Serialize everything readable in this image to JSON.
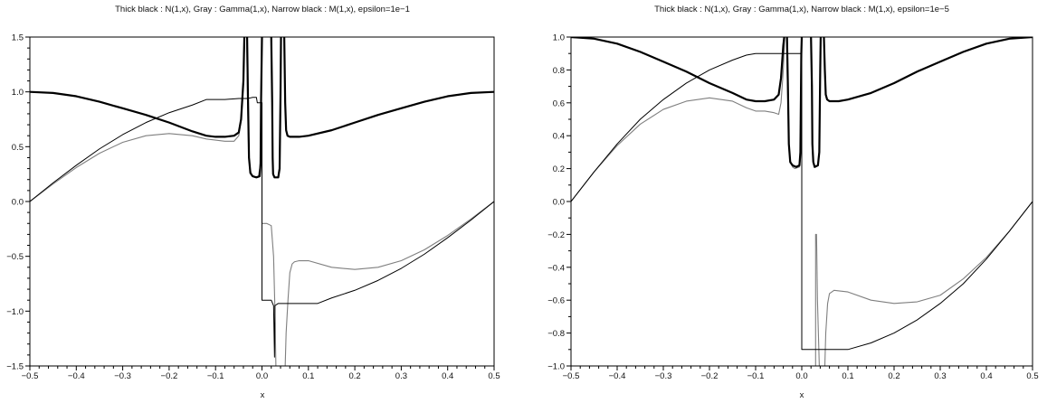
{
  "chart_data": [
    {
      "type": "line",
      "title": "Thick black : N(1,x), Gray : Gamma(1,x), Narrow black : M(1,x), epsilon=1e−1",
      "xlabel": "x",
      "ylabel": "",
      "xlim": [
        -0.5,
        0.5
      ],
      "ylim": [
        -1.5,
        1.5
      ],
      "x_ticks": [
        "−0.5",
        "−0.4",
        "−0.3",
        "−0.2",
        "−0.1",
        "0.0",
        "0.1",
        "0.2",
        "0.3",
        "0.4",
        "0.5"
      ],
      "y_ticks": [
        "−1.5",
        "−1.0",
        "−0.5",
        "0.0",
        "0.5",
        "1.0",
        "1.5"
      ],
      "grid": false,
      "series": [
        {
          "color": "#7f7f7f",
          "width": 1.1,
          "points": [
            [
              -0.5,
              0.0
            ],
            [
              -0.45,
              0.16
            ],
            [
              -0.4,
              0.31
            ],
            [
              -0.35,
              0.44
            ],
            [
              -0.3,
              0.54
            ],
            [
              -0.25,
              0.6
            ],
            [
              -0.2,
              0.62
            ],
            [
              -0.15,
              0.6
            ],
            [
              -0.12,
              0.57
            ],
            [
              -0.1,
              0.56
            ],
            [
              -0.08,
              0.55
            ],
            [
              -0.07,
              0.55
            ],
            [
              -0.06,
              0.55
            ],
            [
              -0.05,
              0.6
            ],
            [
              -0.045,
              0.75
            ],
            [
              -0.04,
              1.1
            ],
            [
              -0.037,
              1.5
            ],
            null,
            [
              -0.033,
              1.5
            ],
            [
              -0.031,
              0.9
            ],
            [
              -0.029,
              0.5
            ],
            [
              -0.026,
              0.3
            ],
            [
              -0.022,
              0.24
            ],
            [
              -0.015,
              0.22
            ],
            [
              -0.008,
              0.23
            ],
            [
              -0.004,
              0.32
            ],
            [
              -0.002,
              0.9
            ],
            [
              0.0,
              0.9
            ],
            [
              0.0,
              -0.2
            ],
            [
              0.01,
              -0.2
            ],
            [
              0.02,
              -0.22
            ],
            [
              0.025,
              -0.5
            ],
            [
              0.028,
              -1.0
            ],
            [
              0.03,
              -1.5
            ],
            null,
            [
              0.05,
              -1.5
            ],
            [
              0.052,
              -1.2
            ],
            [
              0.056,
              -0.9
            ],
            [
              0.06,
              -0.65
            ],
            [
              0.065,
              -0.57
            ],
            [
              0.07,
              -0.55
            ],
            [
              0.08,
              -0.54
            ],
            [
              0.1,
              -0.54
            ],
            [
              0.15,
              -0.6
            ],
            [
              0.2,
              -0.62
            ],
            [
              0.25,
              -0.6
            ],
            [
              0.3,
              -0.54
            ],
            [
              0.35,
              -0.44
            ],
            [
              0.4,
              -0.31
            ],
            [
              0.45,
              -0.16
            ],
            [
              0.5,
              0.0
            ]
          ]
        },
        {
          "color": "#000000",
          "width": 1.0,
          "points": [
            [
              -0.5,
              0.0
            ],
            [
              -0.45,
              0.17
            ],
            [
              -0.4,
              0.33
            ],
            [
              -0.35,
              0.48
            ],
            [
              -0.3,
              0.61
            ],
            [
              -0.25,
              0.72
            ],
            [
              -0.2,
              0.81
            ],
            [
              -0.15,
              0.88
            ],
            [
              -0.12,
              0.93
            ],
            [
              -0.1,
              0.93
            ],
            [
              -0.08,
              0.93
            ],
            [
              -0.05,
              0.94
            ],
            [
              -0.03,
              0.94
            ],
            [
              -0.02,
              0.95
            ],
            [
              -0.012,
              0.95
            ],
            [
              -0.01,
              0.9
            ],
            [
              0.0,
              0.9
            ],
            [
              0.0,
              -0.9
            ],
            [
              0.02,
              -0.9
            ],
            [
              0.025,
              -0.95
            ],
            [
              0.027,
              -1.42
            ],
            [
              0.028,
              -0.95
            ],
            [
              0.035,
              -0.93
            ],
            [
              0.05,
              -0.93
            ],
            [
              0.08,
              -0.93
            ],
            [
              0.1,
              -0.93
            ],
            [
              0.12,
              -0.93
            ],
            [
              0.15,
              -0.88
            ],
            [
              0.2,
              -0.81
            ],
            [
              0.25,
              -0.72
            ],
            [
              0.3,
              -0.61
            ],
            [
              0.35,
              -0.48
            ],
            [
              0.4,
              -0.33
            ],
            [
              0.45,
              -0.17
            ],
            [
              0.5,
              0.0
            ]
          ]
        },
        {
          "color": "#000000",
          "width": 2.2,
          "points": [
            [
              -0.5,
              1.0
            ],
            [
              -0.45,
              0.99
            ],
            [
              -0.4,
              0.96
            ],
            [
              -0.35,
              0.91
            ],
            [
              -0.3,
              0.85
            ],
            [
              -0.25,
              0.79
            ],
            [
              -0.2,
              0.72
            ],
            [
              -0.15,
              0.64
            ],
            [
              -0.12,
              0.6
            ],
            [
              -0.1,
              0.59
            ],
            [
              -0.08,
              0.59
            ],
            [
              -0.06,
              0.6
            ],
            [
              -0.05,
              0.63
            ],
            [
              -0.045,
              0.75
            ],
            [
              -0.04,
              1.1
            ],
            [
              -0.038,
              1.5
            ],
            null,
            [
              -0.032,
              1.5
            ],
            [
              -0.03,
              0.9
            ],
            [
              -0.028,
              0.4
            ],
            [
              -0.025,
              0.26
            ],
            [
              -0.02,
              0.23
            ],
            [
              -0.012,
              0.22
            ],
            [
              -0.005,
              0.23
            ],
            [
              -0.003,
              0.35
            ],
            [
              -0.002,
              0.9
            ],
            [
              0.0,
              1.5
            ],
            null,
            [
              0.02,
              1.5
            ],
            [
              0.022,
              0.9
            ],
            [
              0.023,
              0.4
            ],
            [
              0.024,
              0.25
            ],
            [
              0.027,
              0.22
            ],
            [
              0.035,
              0.22
            ],
            [
              0.038,
              0.3
            ],
            [
              0.04,
              1.0
            ],
            [
              0.041,
              1.5
            ],
            null,
            [
              0.048,
              1.5
            ],
            [
              0.05,
              0.9
            ],
            [
              0.052,
              0.65
            ],
            [
              0.055,
              0.6
            ],
            [
              0.06,
              0.59
            ],
            [
              0.08,
              0.59
            ],
            [
              0.1,
              0.6
            ],
            [
              0.15,
              0.65
            ],
            [
              0.2,
              0.72
            ],
            [
              0.25,
              0.79
            ],
            [
              0.3,
              0.85
            ],
            [
              0.35,
              0.91
            ],
            [
              0.4,
              0.96
            ],
            [
              0.45,
              0.99
            ],
            [
              0.5,
              1.0
            ]
          ]
        }
      ]
    },
    {
      "type": "line",
      "title": "Thick black : N(1,x), Gray : Gamma(1,x), Narrow black : M(1,x), epsilon=1e−5",
      "xlabel": "x",
      "ylabel": "",
      "xlim": [
        -0.5,
        0.5
      ],
      "ylim": [
        -1.0,
        1.0
      ],
      "x_ticks": [
        "−0.5",
        "−0.4",
        "−0.3",
        "−0.2",
        "−0.1",
        "0.0",
        "0.1",
        "0.2",
        "0.3",
        "0.4",
        "0.5"
      ],
      "y_ticks": [
        "−1.0",
        "−0.8",
        "−0.6",
        "−0.4",
        "−0.2",
        "0.0",
        "0.2",
        "0.4",
        "0.6",
        "0.8",
        "1.0"
      ],
      "grid": false,
      "series": [
        {
          "color": "#7f7f7f",
          "width": 1.1,
          "points": [
            [
              -0.5,
              0.0
            ],
            [
              -0.45,
              0.18
            ],
            [
              -0.4,
              0.34
            ],
            [
              -0.35,
              0.47
            ],
            [
              -0.3,
              0.56
            ],
            [
              -0.25,
              0.61
            ],
            [
              -0.2,
              0.63
            ],
            [
              -0.15,
              0.61
            ],
            [
              -0.12,
              0.57
            ],
            [
              -0.1,
              0.55
            ],
            [
              -0.08,
              0.55
            ],
            [
              -0.06,
              0.54
            ],
            [
              -0.05,
              0.53
            ],
            [
              -0.045,
              0.6
            ],
            [
              -0.04,
              0.8
            ],
            [
              -0.037,
              1.0
            ],
            null,
            [
              -0.033,
              1.0
            ],
            [
              -0.031,
              0.7
            ],
            [
              -0.028,
              0.35
            ],
            [
              -0.025,
              0.25
            ],
            [
              -0.02,
              0.21
            ],
            [
              -0.015,
              0.2
            ],
            [
              -0.005,
              0.21
            ],
            [
              -0.003,
              0.26
            ],
            [
              -0.001,
              0.9
            ],
            null,
            [
              0.03,
              -1.0
            ],
            [
              0.03,
              -0.2
            ],
            [
              0.032,
              -0.2
            ],
            [
              0.034,
              -0.6
            ],
            [
              0.038,
              -1.0
            ],
            null,
            [
              0.05,
              -1.0
            ],
            [
              0.052,
              -0.8
            ],
            [
              0.056,
              -0.62
            ],
            [
              0.06,
              -0.56
            ],
            [
              0.07,
              -0.54
            ],
            [
              0.1,
              -0.55
            ],
            [
              0.15,
              -0.6
            ],
            [
              0.2,
              -0.62
            ],
            [
              0.25,
              -0.61
            ],
            [
              0.3,
              -0.57
            ],
            [
              0.35,
              -0.47
            ],
            [
              0.4,
              -0.34
            ],
            [
              0.45,
              -0.18
            ],
            [
              0.5,
              0.0
            ]
          ]
        },
        {
          "color": "#000000",
          "width": 1.0,
          "points": [
            [
              -0.5,
              0.0
            ],
            [
              -0.45,
              0.18
            ],
            [
              -0.4,
              0.35
            ],
            [
              -0.35,
              0.5
            ],
            [
              -0.3,
              0.62
            ],
            [
              -0.25,
              0.72
            ],
            [
              -0.2,
              0.8
            ],
            [
              -0.15,
              0.86
            ],
            [
              -0.12,
              0.89
            ],
            [
              -0.1,
              0.9
            ],
            [
              0.0,
              0.9
            ],
            [
              0.0,
              -0.9
            ],
            [
              0.1,
              -0.9
            ],
            [
              0.15,
              -0.86
            ],
            [
              0.2,
              -0.8
            ],
            [
              0.25,
              -0.72
            ],
            [
              0.3,
              -0.62
            ],
            [
              0.35,
              -0.5
            ],
            [
              0.4,
              -0.35
            ],
            [
              0.45,
              -0.18
            ],
            [
              0.5,
              0.0
            ]
          ]
        },
        {
          "color": "#000000",
          "width": 2.2,
          "points": [
            [
              -0.5,
              1.0
            ],
            [
              -0.45,
              0.99
            ],
            [
              -0.4,
              0.96
            ],
            [
              -0.35,
              0.91
            ],
            [
              -0.3,
              0.85
            ],
            [
              -0.25,
              0.79
            ],
            [
              -0.2,
              0.72
            ],
            [
              -0.15,
              0.66
            ],
            [
              -0.12,
              0.62
            ],
            [
              -0.1,
              0.61
            ],
            [
              -0.08,
              0.61
            ],
            [
              -0.06,
              0.62
            ],
            [
              -0.05,
              0.65
            ],
            [
              -0.045,
              0.75
            ],
            [
              -0.04,
              0.95
            ],
            [
              -0.038,
              1.0
            ],
            null,
            [
              -0.032,
              1.0
            ],
            [
              -0.03,
              0.7
            ],
            [
              -0.028,
              0.35
            ],
            [
              -0.025,
              0.24
            ],
            [
              -0.02,
              0.22
            ],
            [
              -0.012,
              0.21
            ],
            [
              -0.005,
              0.22
            ],
            [
              -0.003,
              0.3
            ],
            [
              -0.001,
              0.9
            ],
            [
              0.0,
              1.0
            ],
            null,
            [
              0.02,
              1.0
            ],
            [
              0.022,
              0.7
            ],
            [
              0.023,
              0.35
            ],
            [
              0.025,
              0.24
            ],
            [
              0.028,
              0.21
            ],
            [
              0.035,
              0.22
            ],
            [
              0.038,
              0.3
            ],
            [
              0.04,
              0.8
            ],
            [
              0.041,
              1.0
            ],
            null,
            [
              0.048,
              1.0
            ],
            [
              0.05,
              0.8
            ],
            [
              0.052,
              0.65
            ],
            [
              0.055,
              0.62
            ],
            [
              0.06,
              0.61
            ],
            [
              0.08,
              0.61
            ],
            [
              0.1,
              0.62
            ],
            [
              0.15,
              0.66
            ],
            [
              0.2,
              0.72
            ],
            [
              0.25,
              0.79
            ],
            [
              0.3,
              0.85
            ],
            [
              0.35,
              0.91
            ],
            [
              0.4,
              0.96
            ],
            [
              0.45,
              0.99
            ],
            [
              0.5,
              1.0
            ]
          ]
        }
      ]
    }
  ]
}
